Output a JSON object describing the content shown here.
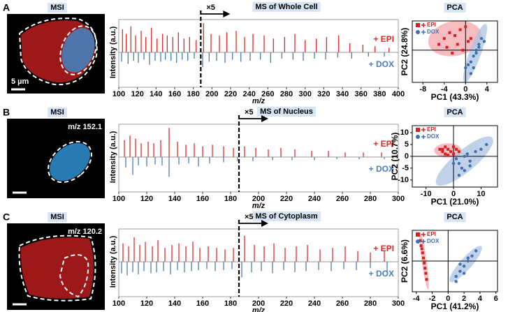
{
  "panels": [
    {
      "label": "A",
      "msi_title": "MSI",
      "msi_note": "5 µm"
    },
    {
      "label": "B",
      "msi_title": "MSI",
      "msi_note": "m/z 152.1"
    },
    {
      "label": "C",
      "msi_title": "MSI",
      "msi_note": "m/z 120.2"
    }
  ],
  "chart_data": [
    {
      "type": "mirror",
      "title": "MS of Whole Cell",
      "xlabel": "m/z",
      "ylabel": "Intensity (a.u.)",
      "xlim": [
        100,
        400
      ],
      "xticks": [
        100,
        120,
        140,
        160,
        180,
        200,
        220,
        240,
        260,
        280,
        300,
        320,
        340,
        360,
        380,
        400
      ],
      "ylim": [
        0,
        1
      ],
      "magnify": {
        "at": 188,
        "label": "×5"
      },
      "series": [
        {
          "name": "+ EPI",
          "color": "#e02a2a",
          "x": [
            104,
            108,
            113,
            118,
            124,
            129,
            135,
            141,
            147,
            152,
            158,
            164,
            170,
            176,
            183,
            191,
            199,
            208,
            216,
            226,
            235,
            244,
            256,
            266,
            278,
            289,
            300,
            312,
            323,
            336,
            348,
            362,
            375,
            390
          ],
          "values": [
            0.75,
            0.6,
            0.85,
            0.55,
            0.7,
            0.5,
            0.8,
            0.45,
            0.6,
            0.55,
            0.5,
            0.65,
            0.45,
            0.5,
            0.4,
            0.95,
            0.6,
            0.55,
            0.65,
            0.7,
            0.5,
            0.6,
            0.55,
            0.45,
            0.5,
            0.6,
            0.4,
            0.45,
            0.5,
            0.55,
            0.3,
            0.25,
            0.2,
            0.15
          ]
        },
        {
          "name": "+ DOX",
          "color": "#4a7db8",
          "x": [
            103,
            110,
            116,
            121,
            127,
            133,
            139,
            145,
            150,
            156,
            162,
            168,
            174,
            181,
            190,
            197,
            205,
            214,
            222,
            231,
            241,
            252,
            263,
            275,
            287,
            298,
            310,
            322,
            335,
            350,
            368,
            385
          ],
          "values": [
            0.45,
            0.55,
            0.4,
            0.5,
            0.35,
            0.6,
            0.4,
            0.45,
            0.35,
            0.4,
            0.5,
            0.35,
            0.4,
            0.3,
            0.7,
            0.45,
            0.4,
            0.5,
            0.35,
            0.45,
            0.4,
            0.35,
            0.5,
            0.3,
            0.35,
            0.4,
            0.3,
            0.35,
            0.25,
            0.3,
            0.2,
            0.2
          ]
        }
      ]
    },
    {
      "type": "scatter",
      "title": "PCA",
      "xlabel": "PC1 (43.3%)",
      "ylabel": "PC2 (24.8%)",
      "xlim": [
        -10,
        6
      ],
      "xticks": [
        -8,
        -4,
        0,
        4
      ],
      "ylim": [
        -5.5,
        5
      ],
      "yticks": [],
      "zero_lines": true,
      "series": [
        {
          "name": "EPI",
          "color": "#d42020",
          "marker": "square",
          "ellipse_color": "#f4a6ab",
          "x": [
            -5,
            -4,
            -3.5,
            -3,
            -2,
            -1.5,
            -1,
            0,
            0.5,
            1,
            -2.5,
            -0.5
          ],
          "values": [
            1,
            2,
            0.5,
            3,
            2.5,
            1,
            3.5,
            4,
            1.5,
            2,
            -0.5,
            0
          ],
          "ellipse": {
            "center": [
              -2,
              2
            ],
            "axes": [
              [
                5,
                0.5
              ],
              [
                0,
                3
              ]
            ]
          }
        },
        {
          "name": "DOX",
          "color": "#3f6fae",
          "marker": "circle",
          "ellipse_color": "#a9c3e3",
          "x": [
            0,
            1,
            1.5,
            2,
            2.5,
            3,
            1,
            0.5,
            2,
            3.5,
            1.5,
            2.5
          ],
          "values": [
            -3,
            -2,
            -1,
            0,
            1,
            2,
            -4,
            -2.5,
            -0.5,
            1.5,
            -3,
            0.5
          ],
          "ellipse": {
            "center": [
              1.8,
              -0.5
            ],
            "axes": [
              [
                2,
                5
              ],
              [
                1,
                -0.4
              ]
            ]
          }
        }
      ]
    },
    {
      "type": "mirror",
      "title": "MS of Nucleus",
      "xlabel": "m/z",
      "ylabel": "Intensity (a.u.)",
      "xlim": [
        100,
        300
      ],
      "xticks": [
        100,
        120,
        140,
        160,
        180,
        200,
        220,
        240,
        260,
        280,
        300
      ],
      "ylim": [
        0,
        1
      ],
      "magnify": {
        "at": 186,
        "label": "×5"
      },
      "series": [
        {
          "name": "+ EPI",
          "color": "#e02a2a",
          "x": [
            104,
            108,
            112,
            116,
            121,
            125,
            130,
            136,
            142,
            148,
            154,
            160,
            167,
            175,
            182,
            190,
            198,
            207,
            216,
            226,
            238,
            250,
            262,
            275,
            288
          ],
          "values": [
            0.55,
            0.7,
            0.6,
            0.45,
            0.5,
            0.45,
            0.55,
            0.95,
            0.5,
            0.4,
            0.45,
            0.35,
            0.4,
            0.35,
            0.3,
            0.35,
            0.3,
            0.25,
            0.3,
            0.25,
            0.2,
            0.2,
            0.15,
            0.15,
            0.15
          ]
        },
        {
          "name": "+ DOX",
          "color": "#4a7db8",
          "x": [
            105,
            110,
            114,
            120,
            126,
            131,
            136,
            143,
            150,
            157,
            165,
            175,
            185,
            196,
            210,
            224,
            240,
            256,
            272,
            290
          ],
          "values": [
            0.5,
            0.85,
            0.4,
            0.45,
            0.35,
            0.4,
            0.95,
            0.35,
            0.3,
            0.45,
            0.3,
            0.25,
            0.2,
            0.2,
            0.15,
            0.15,
            0.15,
            0.1,
            0.1,
            0.1
          ]
        }
      ]
    },
    {
      "type": "scatter",
      "title": "PCA",
      "xlabel": "PC1 (21.0%)",
      "ylabel": "PC2 (10.7%)",
      "xlim": [
        -15,
        16
      ],
      "xticks": [
        -10,
        0,
        10
      ],
      "ylim": [
        -13,
        13
      ],
      "yticks": [
        -10,
        -5,
        0,
        5,
        10
      ],
      "zero_lines": true,
      "series": [
        {
          "name": "EPI",
          "color": "#d42020",
          "marker": "square",
          "ellipse_color": "#f4a6ab",
          "x": [
            -5,
            -4,
            -3,
            -2,
            -1,
            0,
            1,
            -3,
            -2,
            0,
            2,
            -4
          ],
          "values": [
            3,
            2,
            4,
            3,
            2,
            4,
            3,
            1,
            0.5,
            1,
            2,
            3
          ],
          "ellipse": {
            "center": [
              -2,
              2.5
            ],
            "axes": [
              [
                5,
                0
              ],
              [
                0,
                3
              ]
            ]
          }
        },
        {
          "name": "DOX",
          "color": "#3f6fae",
          "marker": "circle",
          "ellipse_color": "#a9c3e3",
          "x": [
            1,
            2,
            3,
            4,
            5,
            6,
            8,
            10,
            12,
            4,
            6,
            2,
            0
          ],
          "values": [
            -1,
            -3,
            -5,
            0,
            1,
            -4,
            2,
            3,
            5,
            -6,
            -2,
            -8,
            -3
          ],
          "ellipse": {
            "center": [
              4,
              -2
            ],
            "axes": [
              [
                10,
                10
              ],
              [
                3,
                -3
              ]
            ]
          }
        }
      ]
    },
    {
      "type": "mirror",
      "title": "MS of Cytoplasm",
      "xlabel": "m/z",
      "ylabel": "Intensity (a.u.)",
      "xlim": [
        100,
        300
      ],
      "xticks": [
        100,
        120,
        140,
        160,
        180,
        200,
        220,
        240,
        260,
        280,
        300
      ],
      "ylim": [
        0,
        1
      ],
      "magnify": {
        "at": 186,
        "label": "×5"
      },
      "series": [
        {
          "name": "+ EPI",
          "color": "#e02a2a",
          "x": [
            103,
            107,
            111,
            115,
            119,
            124,
            128,
            133,
            138,
            143,
            148,
            153,
            158,
            164,
            170,
            176,
            182,
            190,
            197,
            204,
            211,
            219,
            227,
            235,
            244,
            253,
            262,
            271,
            280,
            290
          ],
          "values": [
            0.6,
            0.5,
            0.8,
            0.55,
            0.65,
            0.5,
            0.7,
            0.45,
            0.55,
            0.6,
            0.5,
            0.65,
            0.45,
            0.5,
            0.45,
            0.4,
            0.45,
            0.85,
            0.55,
            0.5,
            0.6,
            0.45,
            0.5,
            0.55,
            0.4,
            0.45,
            0.5,
            0.35,
            0.3,
            0.35
          ]
        },
        {
          "name": "+ DOX",
          "color": "#4a7db8",
          "x": [
            102,
            106,
            110,
            114,
            118,
            123,
            127,
            132,
            137,
            142,
            147,
            152,
            157,
            163,
            169,
            175,
            181,
            188,
            195,
            202,
            210,
            218,
            226,
            234,
            243,
            252,
            261,
            270,
            280,
            292
          ],
          "values": [
            0.55,
            0.65,
            0.5,
            0.6,
            0.45,
            0.55,
            0.5,
            0.45,
            0.6,
            0.4,
            0.5,
            0.45,
            0.4,
            0.35,
            0.45,
            0.4,
            0.35,
            0.75,
            0.5,
            0.45,
            0.55,
            0.4,
            0.5,
            0.45,
            0.4,
            0.45,
            0.35,
            0.4,
            0.3,
            0.5
          ]
        }
      ]
    },
    {
      "type": "scatter",
      "title": "PCA",
      "xlabel": "PC1 (41.2%)",
      "ylabel": "PC2 (6.6%)",
      "xlim": [
        -4.5,
        6.2
      ],
      "xticks": [
        -4,
        -2,
        0,
        2,
        4,
        6
      ],
      "ylim": [
        -3,
        3
      ],
      "yticks": [],
      "zero_lines": true,
      "series": [
        {
          "name": "EPI",
          "color": "#d42020",
          "marker": "square",
          "ellipse_color": "#f4a6ab",
          "x": [
            -3.5,
            -3.4,
            -3.3,
            -3.2,
            -3.1,
            -3,
            -2.9,
            -2.8,
            -2.7
          ],
          "values": [
            2,
            1.5,
            1.2,
            0.8,
            0.3,
            -0.2,
            -0.7,
            -1.2,
            -1.8
          ],
          "ellipse": {
            "center": [
              -3,
              0
            ],
            "axes": [
              [
                0.5,
                -2.8
              ],
              [
                0.3,
                0.05
              ]
            ]
          }
        },
        {
          "name": "DOX",
          "color": "#3f6fae",
          "marker": "circle",
          "ellipse_color": "#a9c3e3",
          "x": [
            1,
            1.5,
            2,
            2.5,
            3,
            2,
            1.5,
            2.5,
            3.5,
            1
          ],
          "values": [
            -1.5,
            -1,
            -0.5,
            0,
            0.5,
            -1.2,
            -0.3,
            0.3,
            1,
            -2
          ],
          "ellipse": {
            "center": [
              2.2,
              -0.3
            ],
            "axes": [
              [
                2,
                1.7
              ],
              [
                -0.4,
                0.5
              ]
            ]
          }
        }
      ]
    }
  ]
}
